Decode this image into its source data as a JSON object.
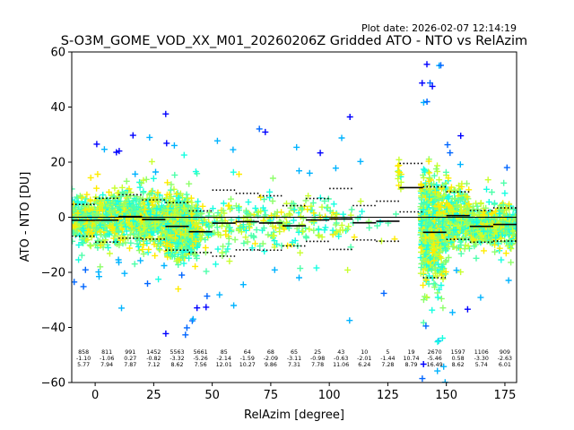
{
  "plot_date": "Plot date: 2026-02-07 12:14:19",
  "chart_data": {
    "type": "scatter",
    "title": "S-O3M_GOME_VOD_XX_M01_20260206Z Gridded ATO - NTO vs RelAzim",
    "xlabel": "RelAzim [degree]",
    "ylabel": "ATO - NTO [DU]",
    "xlim": [
      -10,
      180
    ],
    "ylim": [
      -60,
      60
    ],
    "xticks": [
      0,
      25,
      50,
      75,
      100,
      125,
      150,
      175
    ],
    "yticks": [
      -60,
      -40,
      -20,
      0,
      20,
      40,
      60
    ],
    "grid": false,
    "zero_line": true,
    "bins": [
      {
        "x0": -10,
        "x1": 0,
        "n": "858",
        "mean": "-1.10",
        "std": "5.77",
        "mean_val": -1.1,
        "std_val": 5.77
      },
      {
        "x0": 0,
        "x1": 10,
        "n": "811",
        "mean": "-1.06",
        "std": "7.94",
        "mean_val": -1.06,
        "std_val": 7.94
      },
      {
        "x0": 10,
        "x1": 20,
        "n": "991",
        "mean": "0.27",
        "std": "7.87",
        "mean_val": 0.27,
        "std_val": 7.87
      },
      {
        "x0": 20,
        "x1": 30,
        "n": "1452",
        "mean": "-0.82",
        "std": "7.12",
        "mean_val": -0.82,
        "std_val": 7.12
      },
      {
        "x0": 30,
        "x1": 40,
        "n": "5563",
        "mean": "-3.32",
        "std": "8.62",
        "mean_val": -3.32,
        "std_val": 8.62
      },
      {
        "x0": 40,
        "x1": 50,
        "n": "5661",
        "mean": "-5.26",
        "std": "7.56",
        "mean_val": -5.26,
        "std_val": 7.56
      },
      {
        "x0": 50,
        "x1": 60,
        "n": "85",
        "mean": "-2.14",
        "std": "12.01",
        "mean_val": -2.14,
        "std_val": 12.01
      },
      {
        "x0": 60,
        "x1": 70,
        "n": "64",
        "mean": "-1.59",
        "std": "10.27",
        "mean_val": -1.59,
        "std_val": 10.27
      },
      {
        "x0": 70,
        "x1": 80,
        "n": "68",
        "mean": "-2.09",
        "std": "9.86",
        "mean_val": -2.09,
        "std_val": 9.86
      },
      {
        "x0": 80,
        "x1": 90,
        "n": "65",
        "mean": "-3.11",
        "std": "7.31",
        "mean_val": -3.11,
        "std_val": 7.31
      },
      {
        "x0": 90,
        "x1": 100,
        "n": "25",
        "mean": "-0.98",
        "std": "7.78",
        "mean_val": -0.98,
        "std_val": 7.78
      },
      {
        "x0": 100,
        "x1": 110,
        "n": "43",
        "mean": "-0.63",
        "std": "11.06",
        "mean_val": -0.63,
        "std_val": 11.06
      },
      {
        "x0": 110,
        "x1": 120,
        "n": "10",
        "mean": "-2.01",
        "std": "6.24",
        "mean_val": -2.01,
        "std_val": 6.24
      },
      {
        "x0": 120,
        "x1": 130,
        "n": "5",
        "mean": "-1.44",
        "std": "7.28",
        "mean_val": -1.44,
        "std_val": 7.28
      },
      {
        "x0": 130,
        "x1": 140,
        "n": "19",
        "mean": "10.74",
        "std": "8.79",
        "mean_val": 10.74,
        "std_val": 8.79
      },
      {
        "x0": 140,
        "x1": 150,
        "n": "2670",
        "mean": "-5.46",
        "std": "16.49",
        "mean_val": -5.46,
        "std_val": 16.49
      },
      {
        "x0": 150,
        "x1": 160,
        "n": "1597",
        "mean": "0.58",
        "std": "8.62",
        "mean_val": 0.58,
        "std_val": 8.62
      },
      {
        "x0": 160,
        "x1": 170,
        "n": "1106",
        "mean": "-3.30",
        "std": "5.74",
        "mean_val": -3.3,
        "std_val": 5.74
      },
      {
        "x0": 170,
        "x1": 180,
        "n": "909",
        "mean": "-2.63",
        "std": "6.01",
        "mean_val": -2.63,
        "std_val": 6.01
      }
    ],
    "scatter_regions": [
      {
        "x0": -10,
        "x1": 0,
        "center": -1,
        "spread": 7,
        "count": 260,
        "outliers": 6
      },
      {
        "x0": 0,
        "x1": 10,
        "center": -1,
        "spread": 9,
        "count": 240,
        "outliers": 8
      },
      {
        "x0": 10,
        "x1": 20,
        "center": 0,
        "spread": 9,
        "count": 260,
        "outliers": 8
      },
      {
        "x0": 20,
        "x1": 30,
        "center": -1,
        "spread": 9,
        "count": 300,
        "outliers": 8
      },
      {
        "x0": 30,
        "x1": 40,
        "center": -3,
        "spread": 11,
        "count": 520,
        "outliers": 10
      },
      {
        "x0": 40,
        "x1": 44,
        "center": -5,
        "spread": 9,
        "count": 160,
        "outliers": 6
      },
      {
        "x0": 44,
        "x1": 60,
        "center": -3,
        "spread": 10,
        "count": 90,
        "outliers": 8
      },
      {
        "x0": 60,
        "x1": 90,
        "center": -2,
        "spread": 9,
        "count": 140,
        "outliers": 10
      },
      {
        "x0": 90,
        "x1": 110,
        "center": -1,
        "spread": 10,
        "count": 60,
        "outliers": 8
      },
      {
        "x0": 110,
        "x1": 130,
        "center": -2,
        "spread": 7,
        "count": 14,
        "outliers": 2
      },
      {
        "x0": 129,
        "x1": 131,
        "center": 15,
        "spread": 6,
        "count": 14,
        "outliers": 0
      },
      {
        "x0": 139,
        "x1": 150,
        "center": -4,
        "spread": 18,
        "count": 700,
        "outliers": 25
      },
      {
        "x0": 150,
        "x1": 160,
        "center": 0,
        "spread": 10,
        "count": 320,
        "outliers": 8
      },
      {
        "x0": 160,
        "x1": 170,
        "center": -3,
        "spread": 7,
        "count": 260,
        "outliers": 5
      },
      {
        "x0": 170,
        "x1": 180,
        "center": -3,
        "spread": 7,
        "count": 240,
        "outliers": 5
      }
    ],
    "colors": [
      "#0000ff",
      "#0066ff",
      "#00b3ff",
      "#16ffe1",
      "#4dffaa",
      "#8dff6a",
      "#c8ff2e",
      "#ffec00",
      "#ffb000"
    ]
  }
}
